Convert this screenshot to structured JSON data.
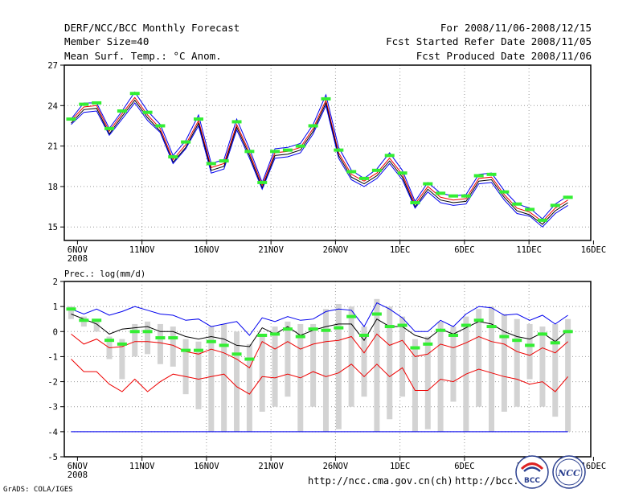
{
  "header": {
    "title": "DERF/NCC/BCC Monthly Forecast",
    "member": "Member Size=40",
    "variable": "Mean Surf. Temp.: °C Anom.",
    "period": "For 2008/11/06-2008/12/15",
    "start": "Fcst Started Refer Date 2008/11/05",
    "produced": "Fcst Produced Date 2008/11/06"
  },
  "footer": {
    "grads": "GrADS: COLA/IGES",
    "url1": "http://ncc.cma.gov.cn(ch)",
    "url2": "http://bcc.c"
  },
  "logos": {
    "bcc": "BCC",
    "ncc": "NCC"
  },
  "colors": {
    "green": "#33ee33",
    "blue": "#0000ee",
    "red": "#ee0000",
    "black": "#000000",
    "gray": "#d3d3d3",
    "grid": "#999999"
  },
  "chart_data": [
    {
      "type": "line",
      "title": "Mean Surf. Temp.: °C Anom.",
      "x_tick_labels": [
        "6NOV",
        "11NOV",
        "16NOV",
        "21NOV",
        "26NOV",
        "1DEC",
        "6DEC",
        "11DEC",
        "16DEC"
      ],
      "x_year_label": "2008",
      "x_tick_days": [
        0,
        5,
        10,
        15,
        20,
        25,
        30,
        35,
        40
      ],
      "y_ticks": [
        15,
        18,
        21,
        24,
        27
      ],
      "ylim": [
        14,
        27
      ],
      "xlim": [
        0,
        40
      ],
      "days": [
        0,
        1,
        2,
        3,
        4,
        5,
        6,
        7,
        8,
        9,
        10,
        11,
        12,
        13,
        14,
        15,
        16,
        17,
        18,
        19,
        20,
        21,
        22,
        23,
        24,
        25,
        26,
        27,
        28,
        29,
        30,
        31,
        32,
        33,
        34,
        35,
        36,
        37,
        38,
        39
      ],
      "series": [
        {
          "name": "green markers",
          "values": [
            23.0,
            24.1,
            24.2,
            22.3,
            23.6,
            24.9,
            23.5,
            22.5,
            20.2,
            21.3,
            23.0,
            19.7,
            19.9,
            22.8,
            20.6,
            18.3,
            20.6,
            20.7,
            21.0,
            22.5,
            24.5,
            20.7,
            19.1,
            18.6,
            19.2,
            20.3,
            19.0,
            16.8,
            18.2,
            17.5,
            17.3,
            17.3,
            18.8,
            18.9,
            17.6,
            16.7,
            16.3,
            15.5,
            16.6,
            17.2
          ]
        },
        {
          "name": "upper bound",
          "values": [
            23.0,
            24.2,
            24.2,
            22.3,
            23.6,
            25.0,
            23.6,
            22.6,
            20.3,
            21.4,
            23.3,
            19.7,
            20.0,
            23.0,
            20.8,
            18.3,
            20.8,
            20.9,
            21.2,
            22.6,
            24.8,
            20.9,
            19.2,
            18.6,
            19.3,
            20.5,
            19.2,
            16.9,
            18.3,
            17.5,
            17.3,
            17.4,
            18.9,
            19.0,
            17.7,
            16.7,
            16.4,
            15.6,
            16.7,
            17.3
          ]
        },
        {
          "name": "upper middle",
          "values": [
            22.9,
            23.9,
            24.0,
            22.1,
            23.4,
            24.6,
            23.3,
            22.3,
            20.0,
            21.1,
            22.9,
            19.4,
            19.7,
            22.6,
            20.5,
            18.1,
            20.5,
            20.6,
            20.9,
            22.3,
            24.4,
            20.5,
            18.9,
            18.4,
            19.0,
            20.1,
            18.9,
            16.7,
            18.0,
            17.2,
            17.0,
            17.1,
            18.6,
            18.7,
            17.4,
            16.4,
            16.1,
            15.4,
            16.4,
            17.0
          ]
        },
        {
          "name": "lower middle",
          "values": [
            22.7,
            23.7,
            23.8,
            21.9,
            23.2,
            24.4,
            23.1,
            22.1,
            19.8,
            20.9,
            22.7,
            19.2,
            19.5,
            22.4,
            20.3,
            17.9,
            20.3,
            20.4,
            20.7,
            22.1,
            24.2,
            20.3,
            18.7,
            18.2,
            18.8,
            19.9,
            18.7,
            16.5,
            17.8,
            17.0,
            16.8,
            16.9,
            18.4,
            18.5,
            17.2,
            16.2,
            15.9,
            15.2,
            16.2,
            16.8
          ]
        },
        {
          "name": "lower bound",
          "values": [
            22.6,
            23.5,
            23.6,
            21.8,
            23.0,
            24.2,
            22.9,
            22.0,
            19.7,
            20.8,
            22.5,
            19.0,
            19.3,
            22.2,
            20.1,
            17.8,
            20.1,
            20.2,
            20.5,
            21.9,
            24.0,
            20.1,
            18.5,
            18.0,
            18.6,
            19.7,
            18.5,
            16.4,
            17.6,
            16.8,
            16.6,
            16.7,
            18.2,
            18.3,
            17.0,
            16.0,
            15.8,
            15.0,
            16.0,
            16.6
          ]
        }
      ]
    },
    {
      "type": "line",
      "title": "Prec.: log(mm/d)",
      "x_tick_labels": [
        "6NOV",
        "11NOV",
        "16NOV",
        "21NOV",
        "26NOV",
        "1DEC",
        "6DEC",
        "11DEC",
        "16DEC"
      ],
      "x_year_label": "2008",
      "x_tick_days": [
        0,
        5,
        10,
        15,
        20,
        25,
        30,
        35,
        40
      ],
      "y_ticks": [
        -5,
        -4,
        -3,
        -2,
        -1,
        0,
        1,
        2
      ],
      "ylim": [
        -5,
        2
      ],
      "xlim": [
        0,
        40
      ],
      "days": [
        0,
        1,
        2,
        3,
        4,
        5,
        6,
        7,
        8,
        9,
        10,
        11,
        12,
        13,
        14,
        15,
        16,
        17,
        18,
        19,
        20,
        21,
        22,
        23,
        24,
        25,
        26,
        27,
        28,
        29,
        30,
        31,
        32,
        33,
        34,
        35,
        36,
        37,
        38,
        39
      ],
      "gray_bars": {
        "top": [
          1.0,
          0.6,
          0.5,
          -0.2,
          -0.3,
          0.3,
          0.4,
          0.3,
          0.2,
          -0.3,
          -0.4,
          0.2,
          0.3,
          0.0,
          -0.5,
          -0.2,
          0.2,
          0.4,
          0.3,
          0.3,
          0.9,
          1.1,
          1.0,
          0.2,
          1.3,
          1.0,
          0.6,
          -0.3,
          -0.2,
          0.4,
          0.2,
          0.6,
          0.9,
          1.0,
          0.7,
          0.5,
          0.3,
          0.2,
          0.3,
          0.5
        ],
        "bottom": [
          0.5,
          0.2,
          0.0,
          -1.1,
          -1.9,
          -1.0,
          -0.9,
          -1.3,
          -1.4,
          -2.5,
          -3.1,
          -4.0,
          -4.0,
          -4.0,
          -4.0,
          -3.2,
          -3.0,
          -2.6,
          -4.0,
          -3.0,
          -4.0,
          -3.9,
          -3.0,
          -2.6,
          -4.0,
          -3.5,
          -2.6,
          -4.0,
          -3.9,
          -4.0,
          -2.8,
          -4.0,
          -3.0,
          -4.0,
          -3.2,
          -3.0,
          -1.9,
          -3.0,
          -3.4,
          -4.0
        ]
      },
      "series": [
        {
          "name": "green markers",
          "values": [
            0.9,
            0.45,
            0.45,
            -0.35,
            -0.5,
            0.0,
            0.0,
            -0.25,
            -0.25,
            -0.75,
            -0.75,
            -0.4,
            -0.55,
            -0.9,
            -1.1,
            -0.15,
            -0.1,
            0.1,
            -0.2,
            0.1,
            0.05,
            0.15,
            0.6,
            -0.15,
            0.7,
            0.2,
            0.25,
            -0.65,
            -0.5,
            0.05,
            -0.15,
            0.25,
            0.45,
            0.2,
            -0.2,
            -0.35,
            -0.55,
            -0.1,
            -0.45,
            0.0
          ]
        },
        {
          "name": "upper bound",
          "values": [
            0.9,
            0.7,
            0.9,
            0.65,
            0.8,
            1.0,
            0.85,
            0.7,
            0.65,
            0.45,
            0.5,
            0.2,
            0.3,
            0.4,
            -0.15,
            0.55,
            0.4,
            0.6,
            0.45,
            0.5,
            0.8,
            0.9,
            0.85,
            0.2,
            1.15,
            0.9,
            0.55,
            0.0,
            0.0,
            0.45,
            0.2,
            0.7,
            1.0,
            0.95,
            0.65,
            0.7,
            0.45,
            0.65,
            0.3,
            0.65
          ]
        },
        {
          "name": "mean",
          "values": [
            0.7,
            0.5,
            0.3,
            -0.1,
            0.1,
            0.15,
            0.2,
            0.0,
            0.0,
            -0.2,
            -0.3,
            -0.2,
            -0.3,
            -0.55,
            -0.6,
            0.15,
            -0.1,
            0.2,
            -0.15,
            0.05,
            0.2,
            0.3,
            0.3,
            -0.35,
            0.5,
            0.2,
            0.2,
            -0.15,
            -0.3,
            0.1,
            -0.1,
            0.15,
            0.4,
            0.3,
            0.0,
            -0.2,
            -0.3,
            -0.05,
            -0.4,
            0.05
          ]
        },
        {
          "name": "upper red",
          "values": [
            -0.1,
            -0.5,
            -0.3,
            -0.65,
            -0.6,
            -0.4,
            -0.4,
            -0.45,
            -0.55,
            -0.8,
            -0.9,
            -0.7,
            -0.85,
            -1.1,
            -1.45,
            -0.4,
            -0.7,
            -0.4,
            -0.7,
            -0.5,
            -0.4,
            -0.35,
            -0.2,
            -0.85,
            -0.1,
            -0.55,
            -0.35,
            -1.0,
            -0.9,
            -0.5,
            -0.65,
            -0.45,
            -0.2,
            -0.4,
            -0.5,
            -0.8,
            -0.95,
            -0.65,
            -0.85,
            -0.4
          ]
        },
        {
          "name": "lower red",
          "values": [
            -1.1,
            -1.6,
            -1.6,
            -2.1,
            -2.4,
            -1.9,
            -2.4,
            -2.0,
            -1.7,
            -1.8,
            -1.9,
            -1.8,
            -1.7,
            -2.2,
            -2.5,
            -1.8,
            -1.85,
            -1.7,
            -1.85,
            -1.6,
            -1.8,
            -1.65,
            -1.3,
            -1.8,
            -1.3,
            -1.8,
            -1.45,
            -2.35,
            -2.35,
            -1.9,
            -2.0,
            -1.7,
            -1.5,
            -1.65,
            -1.8,
            -1.9,
            -2.1,
            -2.0,
            -2.4,
            -1.8
          ]
        },
        {
          "name": "minimum",
          "values": [
            -4.0,
            -4.0,
            -4.0,
            -4.0,
            -4.0,
            -4.0,
            -4.0,
            -4.0,
            -4.0,
            -4.0,
            -4.0,
            -4.0,
            -4.0,
            -4.0,
            -4.0,
            -4.0,
            -4.0,
            -4.0,
            -4.0,
            -4.0,
            -4.0,
            -4.0,
            -4.0,
            -4.0,
            -4.0,
            -4.0,
            -4.0,
            -4.0,
            -4.0,
            -4.0,
            -4.0,
            -4.0,
            -4.0,
            -4.0,
            -4.0,
            -4.0,
            -4.0,
            -4.0,
            -4.0,
            -4.0
          ]
        }
      ]
    }
  ]
}
